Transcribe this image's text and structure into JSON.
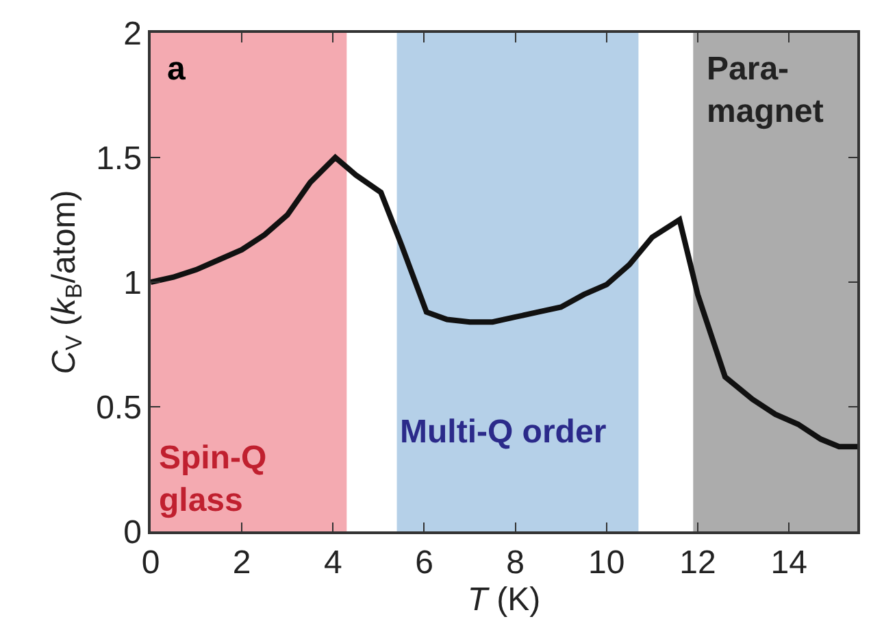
{
  "chart_data": {
    "type": "line",
    "xlabel": "T (K)",
    "ylabel": "C$_{V}$ (k$_{B}$/atom)",
    "x": [
      0,
      0.5,
      1,
      1.5,
      2,
      2.5,
      3,
      3.5,
      4.05,
      4.5,
      5.05,
      5.5,
      6.05,
      6.5,
      7,
      7.5,
      8,
      8.5,
      9,
      9.5,
      10,
      10.5,
      11,
      11.6,
      12,
      12.6,
      13.2,
      13.7,
      14.2,
      14.7,
      15.1,
      15.5
    ],
    "series": [
      {
        "color": "#111111",
        "values": [
          1.0,
          1.02,
          1.05,
          1.09,
          1.13,
          1.19,
          1.27,
          1.4,
          1.5,
          1.43,
          1.36,
          1.15,
          0.88,
          0.85,
          0.84,
          0.84,
          0.86,
          0.88,
          0.9,
          0.95,
          0.99,
          1.07,
          1.18,
          1.25,
          0.95,
          0.62,
          0.53,
          0.47,
          0.43,
          0.37,
          0.34,
          0.34
        ]
      }
    ],
    "xlim": [
      0,
      15.5
    ],
    "ylim": [
      0,
      2
    ],
    "xticks": [
      0,
      2,
      4,
      6,
      8,
      10,
      12,
      14
    ],
    "yticks": [
      0,
      0.5,
      1,
      1.5,
      2
    ],
    "bands": [
      {
        "axis": "x",
        "from": 0,
        "to": 4.3,
        "label": "Spin-Q\nglass",
        "color": "#f29ba3"
      },
      {
        "axis": "x",
        "from": 5.4,
        "to": 10.7,
        "label": "Multi-Q order",
        "color": "#a8c8e4"
      },
      {
        "axis": "x",
        "from": 11.9,
        "to": 15.5,
        "label": "Para-\nmagnet",
        "color": "#9e9e9e"
      }
    ],
    "annotations": [
      "a"
    ],
    "grid": false,
    "marker": "none",
    "line_style": "solid"
  }
}
